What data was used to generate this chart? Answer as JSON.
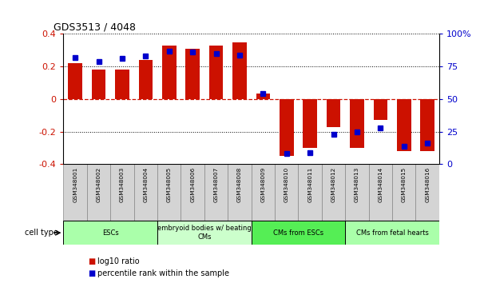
{
  "title": "GDS3513 / 4048",
  "samples": [
    "GSM348001",
    "GSM348002",
    "GSM348003",
    "GSM348004",
    "GSM348005",
    "GSM348006",
    "GSM348007",
    "GSM348008",
    "GSM348009",
    "GSM348010",
    "GSM348011",
    "GSM348012",
    "GSM348013",
    "GSM348014",
    "GSM348015",
    "GSM348016"
  ],
  "log10_ratio": [
    0.22,
    0.18,
    0.18,
    0.24,
    0.33,
    0.31,
    0.33,
    0.35,
    0.035,
    -0.35,
    -0.3,
    -0.17,
    -0.3,
    -0.13,
    -0.32,
    -0.32
  ],
  "percentile_rank": [
    82,
    79,
    81,
    83,
    87,
    86,
    85,
    84,
    54,
    8,
    9,
    23,
    25,
    28,
    14,
    16
  ],
  "bar_color": "#cc1100",
  "dot_color": "#0000cc",
  "cell_types": [
    {
      "label": "ESCs",
      "start": 0,
      "end": 4,
      "color": "#aaffaa"
    },
    {
      "label": "embryoid bodies w/ beating\nCMs",
      "start": 4,
      "end": 8,
      "color": "#ccffcc"
    },
    {
      "label": "CMs from ESCs",
      "start": 8,
      "end": 12,
      "color": "#55ee55"
    },
    {
      "label": "CMs from fetal hearts",
      "start": 12,
      "end": 16,
      "color": "#aaffaa"
    }
  ],
  "ylim_left": [
    -0.4,
    0.4
  ],
  "ylim_right": [
    0,
    100
  ],
  "left_yticks": [
    -0.4,
    -0.2,
    0.0,
    0.2,
    0.4
  ],
  "right_yticks": [
    0,
    25,
    50,
    75,
    100
  ],
  "right_yticklabels": [
    "0",
    "25",
    "50",
    "75",
    "100%"
  ],
  "legend_log10": "log10 ratio",
  "legend_pct": "percentile rank within the sample"
}
